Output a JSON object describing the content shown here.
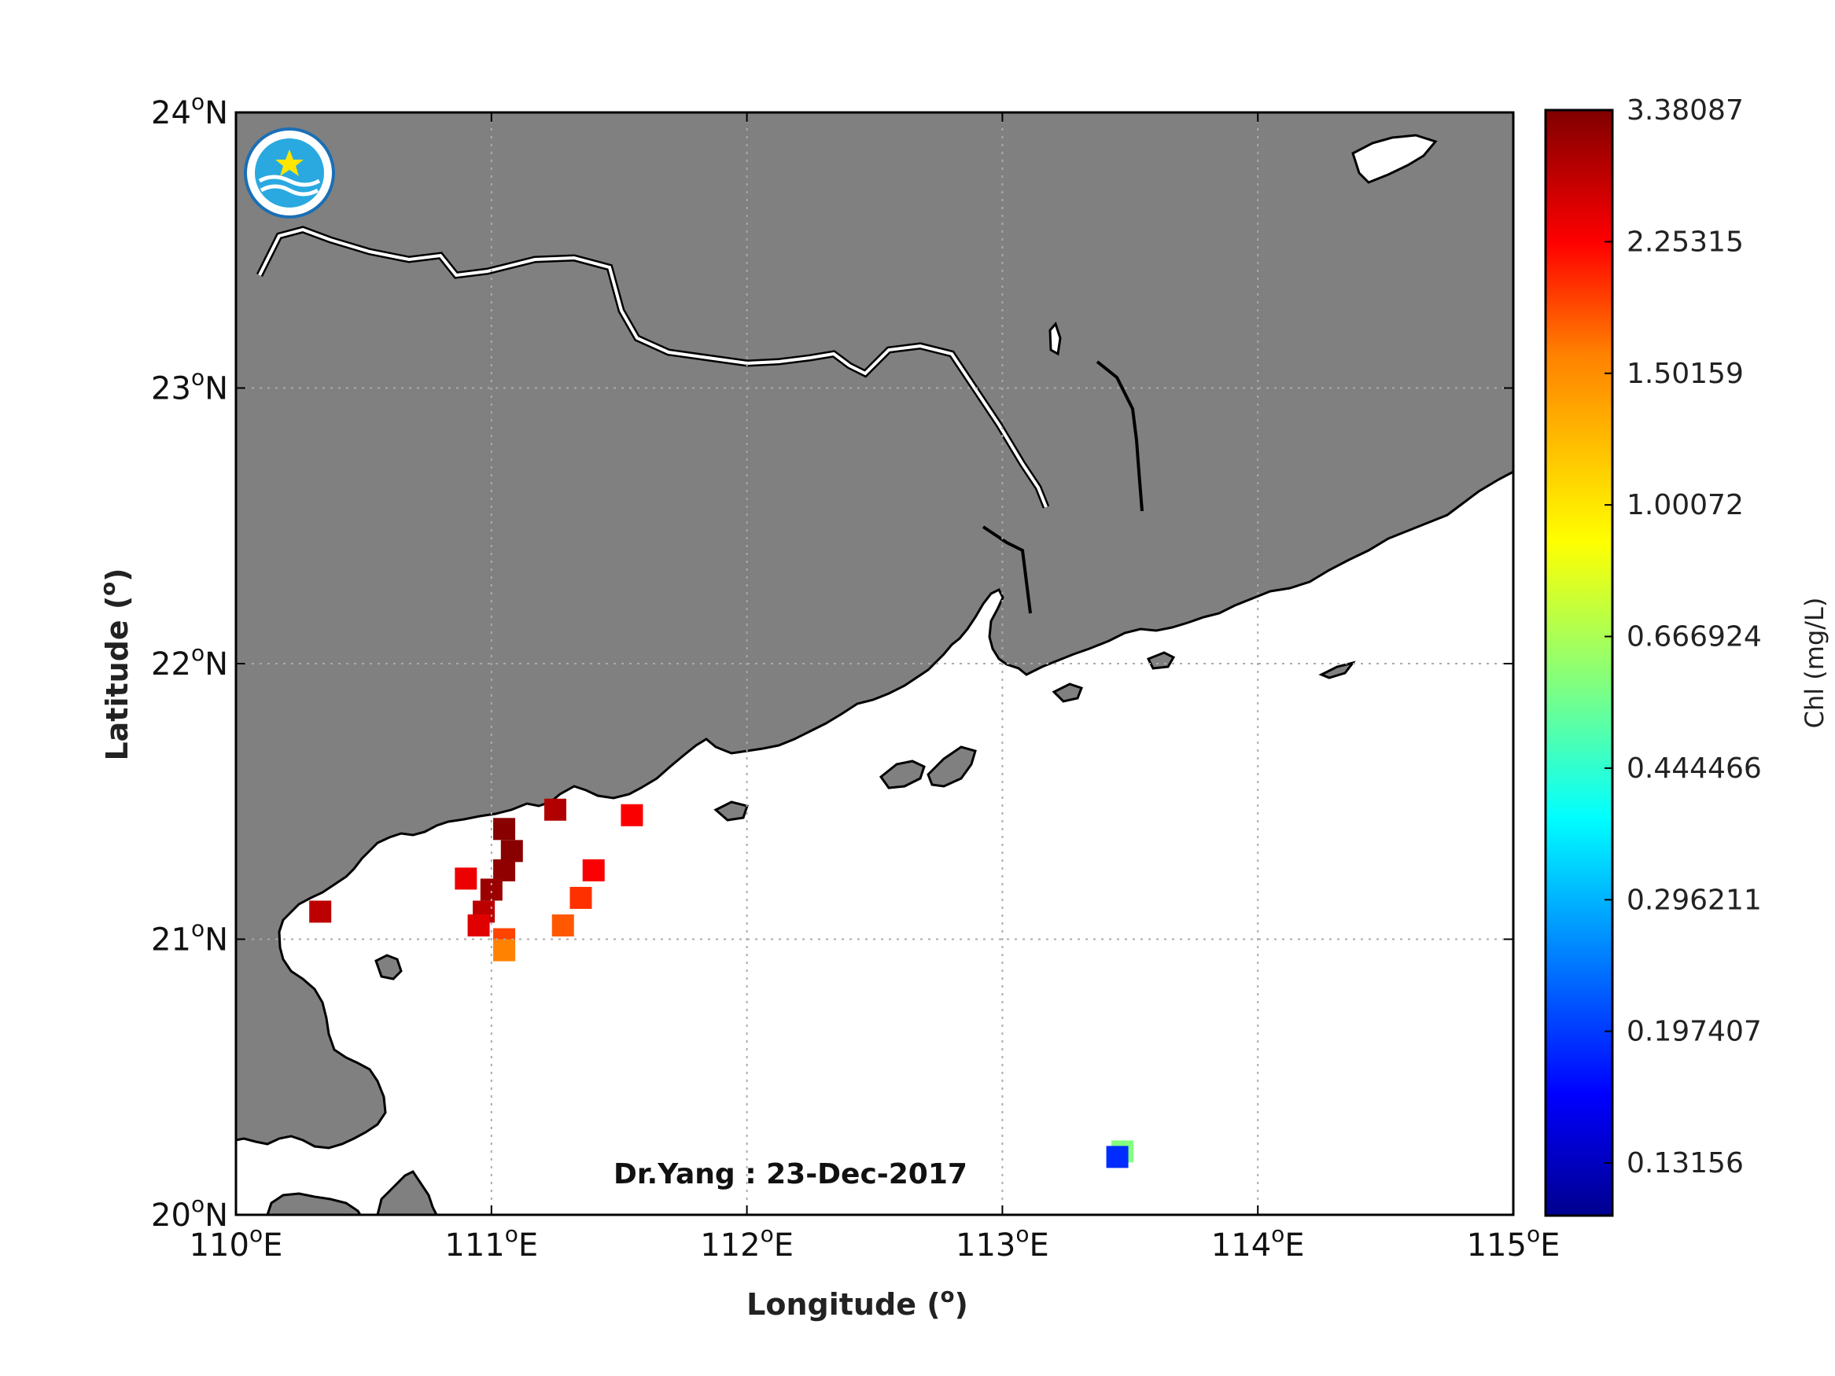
{
  "map": {
    "xlabel": "Longitude (",
    "ylabel": "Latitude (",
    "deg_symbol": "o",
    "close_paren": ")",
    "lon_range": [
      110,
      115
    ],
    "lat_range": [
      20,
      24
    ],
    "lon_ticks": [
      {
        "num": "110",
        "hemi": "E"
      },
      {
        "num": "111",
        "hemi": "E"
      },
      {
        "num": "112",
        "hemi": "E"
      },
      {
        "num": "113",
        "hemi": "E"
      },
      {
        "num": "114",
        "hemi": "E"
      },
      {
        "num": "115",
        "hemi": "E"
      }
    ],
    "lat_ticks": [
      {
        "num": "20",
        "hemi": "N"
      },
      {
        "num": "21",
        "hemi": "N"
      },
      {
        "num": "22",
        "hemi": "N"
      },
      {
        "num": "23",
        "hemi": "N"
      },
      {
        "num": "24",
        "hemi": "N"
      }
    ],
    "annotation": "Dr.Yang : 23-Dec-2017",
    "grid": true,
    "land_color": "#808080",
    "water_color": "#ffffff",
    "coast_color": "#000000",
    "logo_icon": "state-oceanic-administration-logo"
  },
  "colorbar": {
    "title": "Chl (mg/L)",
    "tick_labels": [
      "3.38087",
      "2.25315",
      "1.50159",
      "1.00072",
      "0.666924",
      "0.444466",
      "0.296211",
      "0.197407",
      "0.13156"
    ],
    "colormap": "jet",
    "colors": [
      "#00008f",
      "#0000ff",
      "#0080ff",
      "#00ffff",
      "#80ff80",
      "#ffff00",
      "#ff8000",
      "#ff0000",
      "#800000"
    ]
  },
  "chart_data": {
    "type": "heatmap",
    "title": "",
    "xlabel": "Longitude (o)",
    "ylabel": "Latitude (o)",
    "xlim": [
      110,
      115
    ],
    "ylim": [
      20,
      24
    ],
    "colorbar_label": "Chl (mg/L)",
    "colorbar_range": [
      0.12,
      3.38087
    ],
    "cells": [
      {
        "lon": 111.05,
        "lat": 21.4,
        "chl": 3.3
      },
      {
        "lon": 111.08,
        "lat": 21.32,
        "chl": 3.3
      },
      {
        "lon": 111.05,
        "lat": 21.25,
        "chl": 3.2
      },
      {
        "lon": 111.0,
        "lat": 21.18,
        "chl": 3.1
      },
      {
        "lon": 110.97,
        "lat": 21.1,
        "chl": 2.8
      },
      {
        "lon": 110.95,
        "lat": 21.05,
        "chl": 2.5
      },
      {
        "lon": 111.05,
        "lat": 21.0,
        "chl": 1.9
      },
      {
        "lon": 111.05,
        "lat": 20.96,
        "chl": 1.6
      },
      {
        "lon": 111.25,
        "lat": 21.47,
        "chl": 2.9
      },
      {
        "lon": 111.4,
        "lat": 21.25,
        "chl": 2.3
      },
      {
        "lon": 111.35,
        "lat": 21.15,
        "chl": 2.0
      },
      {
        "lon": 111.28,
        "lat": 21.05,
        "chl": 1.8
      },
      {
        "lon": 111.55,
        "lat": 21.45,
        "chl": 2.3
      },
      {
        "lon": 110.9,
        "lat": 21.22,
        "chl": 2.4
      },
      {
        "lon": 110.33,
        "lat": 21.1,
        "chl": 2.8
      },
      {
        "lon": 113.47,
        "lat": 20.23,
        "chl": 0.6
      },
      {
        "lon": 113.45,
        "lat": 20.21,
        "chl": 0.2
      }
    ]
  }
}
